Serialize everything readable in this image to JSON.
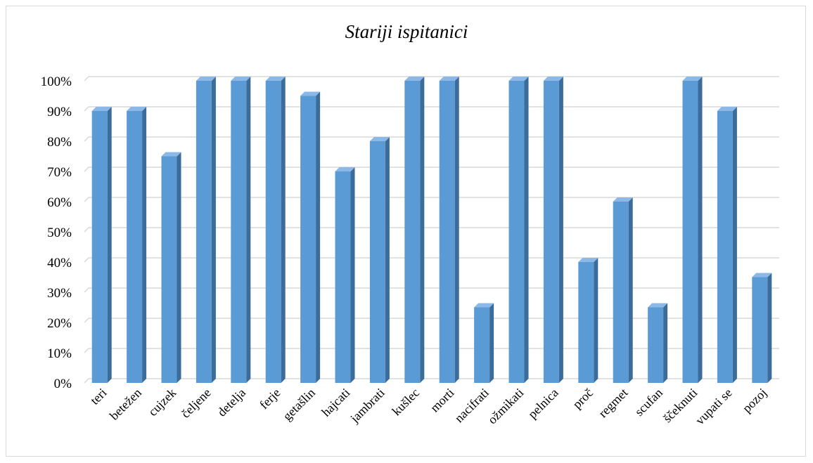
{
  "chart_data": {
    "type": "bar",
    "title": "Stariji ispitanici",
    "categories": [
      "teri",
      "betežen",
      "cujzek",
      "čeljene",
      "detelja",
      "ferje",
      "getašlin",
      "hajcati",
      "jambrati",
      "kušlec",
      "morti",
      "nacifrati",
      "ožmikati",
      "pelnica",
      "proč",
      "regmet",
      "scufan",
      "ščeknuti",
      "vupati se",
      "pozoj"
    ],
    "values": [
      90,
      90,
      75,
      100,
      100,
      100,
      95,
      70,
      80,
      100,
      100,
      25,
      100,
      100,
      40,
      60,
      25,
      100,
      90,
      35
    ],
    "ylim": [
      0,
      100
    ],
    "yticks": [
      "0%",
      "10%",
      "20%",
      "30%",
      "40%",
      "50%",
      "60%",
      "70%",
      "80%",
      "90%",
      "100%"
    ],
    "xlabel": "",
    "ylabel": "",
    "grid": true,
    "colors": {
      "bar_front": "#5b9bd5",
      "bar_side": "#3c6d9a",
      "bar_top": "#8bb8e6"
    }
  }
}
